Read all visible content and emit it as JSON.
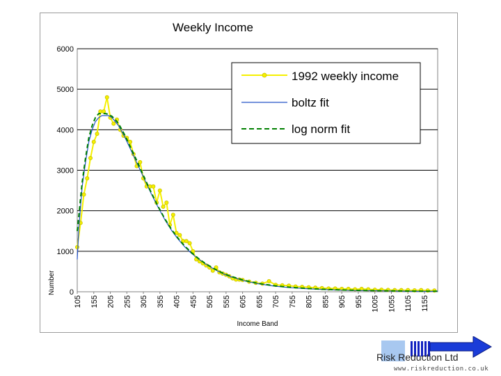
{
  "chart_data": {
    "type": "line",
    "title": "Weekly Income",
    "xlabel": "Income Band",
    "ylabel": "Number",
    "ylim": [
      0,
      6000
    ],
    "yticks": [
      0,
      1000,
      2000,
      3000,
      4000,
      5000,
      6000
    ],
    "xticks": [
      "105",
      "155",
      "205",
      "255",
      "305",
      "355",
      "405",
      "455",
      "505",
      "555",
      "605",
      "655",
      "705",
      "755",
      "805",
      "855",
      "905",
      "955",
      "1005",
      "1055",
      "1105",
      "1155"
    ],
    "xlim": [
      105,
      1195
    ],
    "grid": "horizontal",
    "legend_position": "top-right",
    "series": [
      {
        "name": "1992 weekly income",
        "color": "#f5f000",
        "style": "line-with-markers",
        "x": [
          105,
          115,
          125,
          135,
          145,
          155,
          165,
          175,
          185,
          195,
          205,
          215,
          225,
          235,
          245,
          255,
          265,
          275,
          285,
          295,
          305,
          315,
          325,
          335,
          345,
          355,
          365,
          375,
          385,
          395,
          405,
          415,
          425,
          435,
          445,
          455,
          465,
          475,
          485,
          495,
          505,
          515,
          525,
          535,
          545,
          555,
          565,
          575,
          585,
          595,
          605,
          625,
          645,
          665,
          685,
          705,
          725,
          745,
          765,
          785,
          805,
          825,
          845,
          865,
          885,
          905,
          925,
          945,
          965,
          985,
          1005,
          1025,
          1045,
          1065,
          1085,
          1105,
          1125,
          1145,
          1165,
          1185
        ],
        "y": [
          1100,
          1700,
          2400,
          2800,
          3300,
          3700,
          3900,
          4450,
          4450,
          4800,
          4300,
          4150,
          4250,
          4000,
          3850,
          3800,
          3700,
          3400,
          3100,
          3200,
          2800,
          2600,
          2600,
          2600,
          2200,
          2500,
          2100,
          2200,
          1650,
          1900,
          1450,
          1400,
          1250,
          1250,
          1200,
          1000,
          800,
          750,
          700,
          650,
          600,
          520,
          600,
          480,
          450,
          420,
          380,
          330,
          300,
          300,
          290,
          250,
          220,
          200,
          260,
          170,
          160,
          150,
          130,
          120,
          110,
          100,
          90,
          80,
          80,
          70,
          70,
          60,
          70,
          60,
          50,
          50,
          45,
          40,
          40,
          40,
          35,
          40,
          30,
          30
        ]
      },
      {
        "name": "boltz fit",
        "color": "#2050c8",
        "style": "solid",
        "x": [
          105,
          110,
          120,
          130,
          140,
          150,
          160,
          170,
          180,
          190,
          200,
          210,
          220,
          230,
          240,
          250,
          270,
          290,
          310,
          330,
          350,
          370,
          390,
          410,
          430,
          450,
          470,
          490,
          510,
          530,
          550,
          570,
          590,
          610,
          650,
          700,
          750,
          800,
          850,
          900,
          950,
          1000,
          1050,
          1100,
          1150,
          1195
        ],
        "y": [
          800,
          1600,
          2600,
          3200,
          3700,
          4000,
          4200,
          4300,
          4350,
          4350,
          4350,
          4300,
          4200,
          4100,
          3950,
          3800,
          3450,
          3100,
          2750,
          2400,
          2080,
          1780,
          1520,
          1300,
          1110,
          950,
          820,
          700,
          600,
          510,
          430,
          370,
          320,
          270,
          200,
          140,
          100,
          75,
          55,
          40,
          30,
          25,
          20,
          15,
          12,
          10
        ]
      },
      {
        "name": "log norm fit",
        "color": "#008000",
        "style": "dashed",
        "x": [
          105,
          110,
          120,
          130,
          140,
          150,
          160,
          170,
          180,
          190,
          200,
          210,
          220,
          230,
          240,
          250,
          270,
          290,
          310,
          330,
          350,
          370,
          390,
          410,
          430,
          450,
          470,
          490,
          510,
          530,
          550,
          570,
          590,
          610,
          650,
          700,
          750,
          800,
          850,
          900,
          950,
          1000,
          1050,
          1100,
          1150,
          1195
        ],
        "y": [
          1500,
          1900,
          2700,
          3300,
          3800,
          4100,
          4300,
          4400,
          4400,
          4400,
          4380,
          4330,
          4250,
          4150,
          4000,
          3850,
          3500,
          3150,
          2780,
          2430,
          2100,
          1800,
          1540,
          1320,
          1130,
          970,
          830,
          710,
          610,
          520,
          440,
          380,
          330,
          280,
          210,
          150,
          110,
          80,
          60,
          45,
          35,
          28,
          22,
          18,
          14,
          12
        ]
      }
    ]
  },
  "logo": {
    "name": "Risk Reduction Ltd",
    "url": "www.riskreduction.co.uk"
  }
}
